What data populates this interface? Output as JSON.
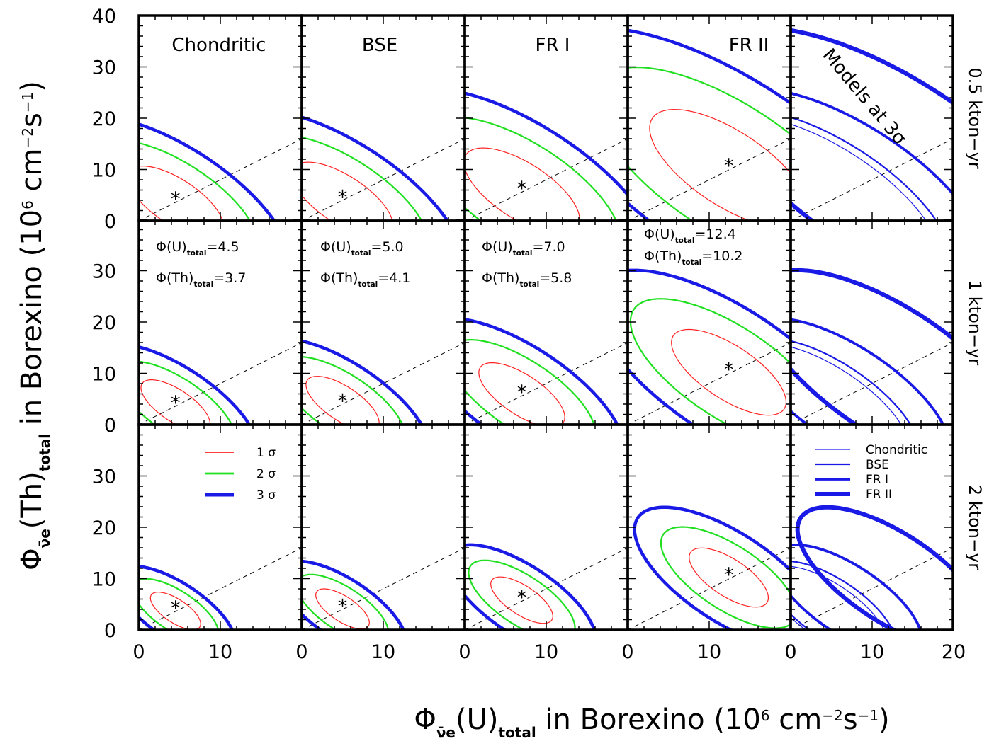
{
  "chart_data": {
    "type": "line",
    "x_label": {
      "prefix": "Φ",
      "sub": "ν̄e",
      "mid": "(U)",
      "sub2": "total",
      "suffix": " in Borexino (10",
      "sup": "6",
      "unit": " cm",
      "sup2": "−2",
      "unit2": "s",
      "sup3": "−1",
      "close": ")"
    },
    "y_label": {
      "prefix": "Φ",
      "sub": "ν̄e",
      "mid": "(Th)",
      "sub2": "total",
      "suffix": " in Borexino (10",
      "sup": "6",
      "unit": " cm",
      "sup2": "−2",
      "unit2": "s",
      "sup3": "−1",
      "close": ")"
    },
    "columns": [
      "Chondritic",
      "BSE",
      "FR I",
      "FR II",
      "Models at 3σ"
    ],
    "rows": [
      "0.5 kton−yr",
      "1 kton−yr",
      "2 kton−yr"
    ],
    "x_ticks": [
      "0",
      "10",
      "0",
      "10",
      "0",
      "10",
      "0",
      "10",
      "0",
      "10",
      "20"
    ],
    "y_ticks_top": [
      "0",
      "10",
      "20",
      "30",
      "40"
    ],
    "y_ticks": [
      "0",
      "10",
      "20",
      "30"
    ],
    "xlim": [
      0,
      20
    ],
    "ylim": [
      0,
      40
    ],
    "colors": {
      "sigma1": "#ff2020",
      "sigma2": "#20e020",
      "sigma3": "#1a1ae6",
      "best_fit": "#ff00ff"
    },
    "models": [
      {
        "name": "Chondritic",
        "center": [
          4.5,
          3.7
        ],
        "label_u": "Φ(U)",
        "label_u_sub": "total",
        "label_u_val": "=4.5",
        "label_th": "Φ(Th)",
        "label_th_sub": "total",
        "label_th_val": "=3.7"
      },
      {
        "name": "BSE",
        "center": [
          5.0,
          4.1
        ],
        "label_u": "Φ(U)",
        "label_u_sub": "total",
        "label_u_val": "=5.0",
        "label_th": "Φ(Th)",
        "label_th_sub": "total",
        "label_th_val": "=4.1"
      },
      {
        "name": "FR I",
        "center": [
          7.0,
          5.8
        ],
        "label_u": "Φ(U)",
        "label_u_sub": "total",
        "label_u_val": "=7.0",
        "label_th": "Φ(Th)",
        "label_th_sub": "total",
        "label_th_val": "=5.8"
      },
      {
        "name": "FR II",
        "center": [
          12.4,
          10.2
        ],
        "label_u": "Φ(U)",
        "label_u_sub": "total",
        "label_u_val": "=12.4",
        "label_th": "Φ(Th)",
        "label_th_sub": "total",
        "label_th_val": "=10.2"
      }
    ],
    "contour_semi_axes_3sigma": {
      "0.5 kton−yr": [
        [
          20.0,
          8.5
        ],
        [
          21.0,
          9.0
        ],
        [
          24.0,
          10.5
        ],
        [
          33.0,
          14.0
        ]
      ],
      "1 kton−yr": [
        [
          14.5,
          6.0
        ],
        [
          15.3,
          6.4
        ],
        [
          18.0,
          7.5
        ],
        [
          24.0,
          10.0
        ]
      ],
      "2 kton−yr": [
        [
          10.5,
          4.4
        ],
        [
          11.2,
          4.7
        ],
        [
          13.0,
          5.4
        ],
        [
          16.5,
          7.0
        ]
      ]
    },
    "contour_sigma_ratios": [
      0.42,
      0.72,
      1.0
    ],
    "contour_tilt_deg": 52,
    "reference_line_slope": 0.8,
    "legend_sigma": {
      "position": "top-center",
      "entries": [
        "1 σ",
        "2 σ",
        "3 σ"
      ]
    },
    "legend_models": {
      "position": "top-right",
      "entries": [
        "Chondritic",
        "BSE",
        "FR I",
        "FR II"
      ]
    },
    "models_at_3sigma_label": "Models at 3σ"
  }
}
